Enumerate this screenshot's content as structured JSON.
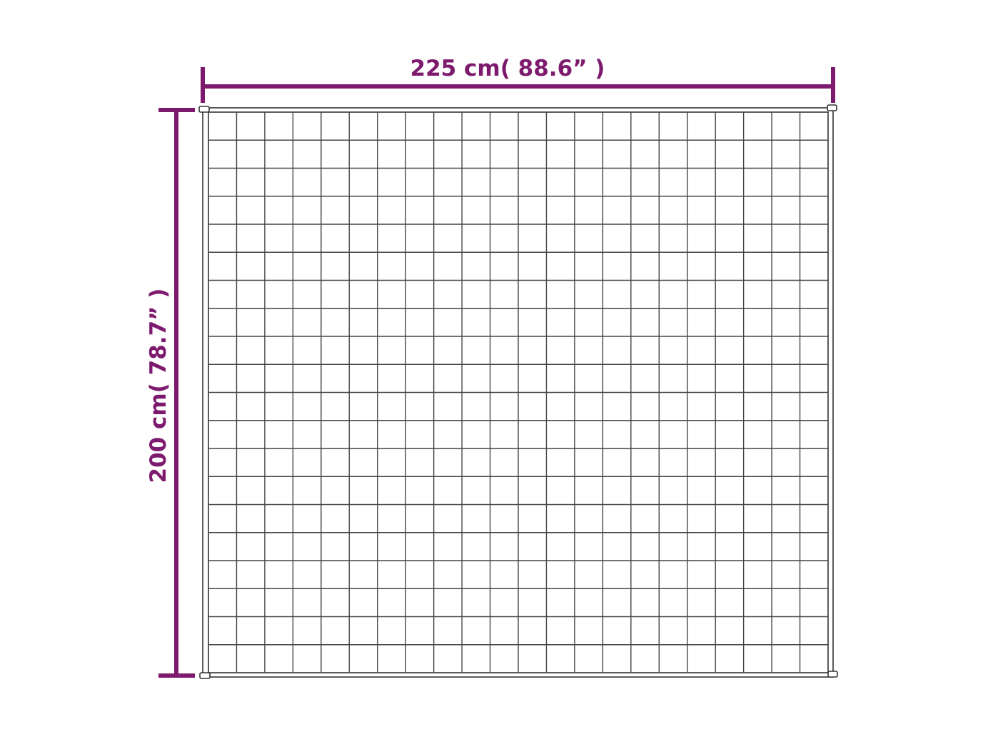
{
  "width_label": "225 cm( 88.6” )",
  "height_label": "200 cm( 78.7” )",
  "grid": {
    "columns": 22,
    "rows": 20
  },
  "colors": {
    "dimension": "#7d1a6e",
    "outline": "#333333",
    "background": "#ffffff"
  }
}
